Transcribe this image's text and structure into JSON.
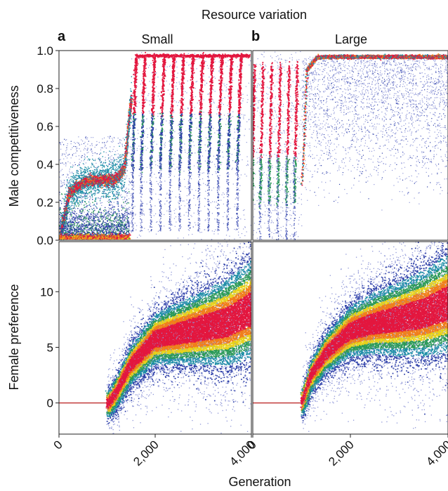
{
  "figure": {
    "supertitle": "Resource variation",
    "xlabel": "Generation"
  },
  "chart_data": [
    {
      "type": "heatmap",
      "panel_letter": "a",
      "title": "Small",
      "ylabel": "Male competitiveness",
      "xlim": [
        0,
        4000
      ],
      "ylim": [
        0,
        1
      ],
      "yticks": [
        0.0,
        0.2,
        0.4,
        0.6,
        0.8,
        1.0
      ],
      "ytick_labels": [
        "0.0",
        "0.2",
        "0.4",
        "0.6",
        "0.8",
        "1.0"
      ],
      "series": [
        {
          "x": [
            0,
            200,
            500,
            800,
            1000,
            1200,
            1350,
            1400,
            1450,
            1500
          ],
          "y": [
            0.0,
            0.25,
            0.31,
            0.32,
            0.32,
            0.33,
            0.38,
            0.5,
            0.65,
            0.75
          ]
        },
        {
          "x": [
            0,
            500,
            1000,
            1400,
            1450
          ],
          "y": [
            0.01,
            0.01,
            0.01,
            0.01,
            0.01
          ]
        }
      ],
      "sweep_starts": [
        1600,
        1780,
        1980,
        2180,
        2380,
        2580,
        2780,
        2980,
        3180,
        3380,
        3580,
        3780
      ],
      "grid": false
    },
    {
      "type": "heatmap",
      "panel_letter": "b",
      "title": "Large",
      "ylabel": "",
      "xlim": [
        0,
        4000
      ],
      "ylim": [
        0,
        1
      ],
      "series": [
        {
          "x": [
            1000,
            1100,
            1300,
            1500,
            2000,
            3000,
            4000
          ],
          "y": [
            0.3,
            0.9,
            0.965,
            0.97,
            0.97,
            0.97,
            0.97
          ]
        }
      ],
      "sweep_starts": [
        30,
        200,
        380,
        560,
        740,
        900
      ],
      "grid": false
    },
    {
      "type": "heatmap",
      "panel_letter": "",
      "title": "",
      "ylabel": "Female preference",
      "xlim": [
        0,
        4000
      ],
      "ylim": [
        -2.8,
        14.5
      ],
      "yticks": [
        0,
        5,
        10
      ],
      "ytick_labels": [
        "0",
        "5",
        "10"
      ],
      "xticks": [
        0,
        2000,
        4000
      ],
      "xtick_labels": [
        "0",
        "2,000",
        "4,000"
      ],
      "series": [
        {
          "name": "",
          "x": [
            0,
            1000,
            1050,
            1200,
            1500,
            2000,
            2500,
            3000,
            3500,
            4000
          ],
          "y": [
            0,
            0,
            0,
            1,
            3.5,
            5.8,
            6.3,
            6.8,
            7.3,
            8.5
          ]
        }
      ],
      "grid": false
    },
    {
      "type": "heatmap",
      "panel_letter": "",
      "title": "",
      "ylabel": "",
      "xlim": [
        0,
        4000
      ],
      "ylim": [
        -2.8,
        14.5
      ],
      "xticks": [
        0,
        2000,
        4000
      ],
      "xtick_labels": [
        "0",
        "2,000",
        "4,000"
      ],
      "series": [
        {
          "name": "",
          "x": [
            0,
            1000,
            1050,
            1200,
            1500,
            2000,
            2500,
            3000,
            3500,
            4000
          ],
          "y": [
            0,
            0,
            0.5,
            2.5,
            4.5,
            6.5,
            7.2,
            7.6,
            8.1,
            9
          ]
        }
      ],
      "grid": false
    }
  ]
}
